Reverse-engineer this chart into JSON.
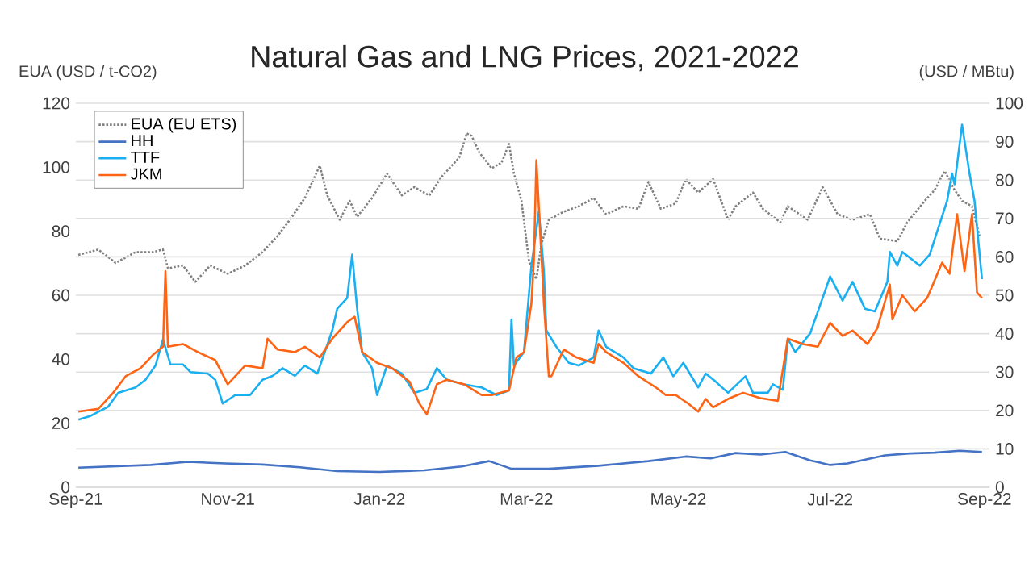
{
  "chart_data": {
    "type": "line",
    "title": "Natural Gas and LNG Prices, 2021-2022",
    "ylabel": "EUA (USD / t-CO2)",
    "y2label": "(USD / MBtu)",
    "xlim": [
      "2021-09-01",
      "2022-09-03"
    ],
    "xticks": [
      {
        "value": "2021-09-01",
        "label": "Sep-21"
      },
      {
        "value": "2021-11-01",
        "label": "Nov-21"
      },
      {
        "value": "2022-01-01",
        "label": "Jan-22"
      },
      {
        "value": "2022-03-01",
        "label": "Mar-22"
      },
      {
        "value": "2022-05-01",
        "label": "May-22"
      },
      {
        "value": "2022-07-01",
        "label": "Jul-22"
      },
      {
        "value": "2022-09-01",
        "label": "Sep-22"
      }
    ],
    "ylim": [
      0,
      120
    ],
    "yticks": [
      0,
      20,
      40,
      60,
      80,
      100,
      120
    ],
    "y2lim": [
      0,
      100
    ],
    "y2ticks": [
      0,
      10,
      20,
      30,
      40,
      50,
      60,
      70,
      80,
      90,
      100
    ],
    "grid": "y",
    "legend": "top left",
    "marker": "none",
    "series": [
      {
        "name": "EUA (EU ETS)",
        "color": "#808080",
        "line_style": "dotted",
        "x": [
          "2021-09-02",
          "2021-09-10",
          "2021-09-17",
          "2021-09-25",
          "2021-10-02",
          "2021-10-06",
          "2021-10-08",
          "2021-10-14",
          "2021-10-19",
          "2021-10-25",
          "2021-11-01",
          "2021-11-08",
          "2021-11-15",
          "2021-11-21",
          "2021-11-26",
          "2021-12-02",
          "2021-12-08",
          "2021-12-11",
          "2021-12-16",
          "2021-12-20",
          "2021-12-23",
          "2021-12-29",
          "2022-01-04",
          "2022-01-10",
          "2022-01-15",
          "2022-01-21",
          "2022-01-26",
          "2022-02-02",
          "2022-02-05",
          "2022-02-07",
          "2022-02-10",
          "2022-02-15",
          "2022-02-19",
          "2022-02-22",
          "2022-02-24",
          "2022-02-27",
          "2022-03-02",
          "2022-03-05",
          "2022-03-07",
          "2022-03-10",
          "2022-03-16",
          "2022-03-22",
          "2022-03-28",
          "2022-04-02",
          "2022-04-09",
          "2022-04-15",
          "2022-04-19",
          "2022-04-24",
          "2022-04-30",
          "2022-05-04",
          "2022-05-09",
          "2022-05-15",
          "2022-05-21",
          "2022-05-24",
          "2022-05-31",
          "2022-06-04",
          "2022-06-11",
          "2022-06-14",
          "2022-06-22",
          "2022-06-28",
          "2022-07-04",
          "2022-07-10",
          "2022-07-17",
          "2022-07-21",
          "2022-07-28",
          "2022-08-01",
          "2022-08-08",
          "2022-08-12",
          "2022-08-16",
          "2022-08-20",
          "2022-08-23",
          "2022-08-27",
          "2022-08-30"
        ],
        "values": [
          72.6,
          74.3,
          70.1,
          73.5,
          73.5,
          74.3,
          68.4,
          69.3,
          64.2,
          69.3,
          66.7,
          69.3,
          73.5,
          78.5,
          83.6,
          90.4,
          100.5,
          91.2,
          83.6,
          89.5,
          84.5,
          90.4,
          98,
          91.2,
          93.8,
          91.2,
          97.1,
          103,
          110.6,
          109.8,
          104.7,
          99.7,
          101.4,
          107.3,
          98,
          89.5,
          70.9,
          65,
          76,
          83.6,
          86.1,
          87.8,
          90.4,
          85.3,
          87.8,
          87,
          95.4,
          87,
          88.7,
          96.3,
          92.1,
          96.3,
          83.6,
          87.8,
          92.1,
          87,
          82.8,
          87.8,
          83.6,
          93.8,
          85.3,
          83.6,
          85.3,
          77.7,
          76.9,
          82.8,
          89.5,
          92.9,
          98.8,
          92.9,
          89.5,
          87.8,
          78.5
        ]
      },
      {
        "name": "HH",
        "color": "#4472c4",
        "axis": "y2",
        "x": [
          "2021-09-02",
          "2021-10-01",
          "2021-10-16",
          "2021-10-31",
          "2021-11-15",
          "2021-11-30",
          "2021-12-15",
          "2022-01-01",
          "2022-01-19",
          "2022-02-03",
          "2022-02-14",
          "2022-02-23",
          "2022-03-10",
          "2022-03-30",
          "2022-04-19",
          "2022-05-04",
          "2022-05-14",
          "2022-05-24",
          "2022-06-03",
          "2022-06-13",
          "2022-06-23",
          "2022-07-01",
          "2022-07-08",
          "2022-07-23",
          "2022-08-02",
          "2022-08-12",
          "2022-08-22",
          "2022-08-31"
        ],
        "values": [
          5.1,
          5.8,
          6.6,
          6.2,
          5.9,
          5.2,
          4.2,
          4.0,
          4.4,
          5.4,
          6.8,
          4.8,
          4.8,
          5.6,
          6.8,
          8.0,
          7.5,
          8.9,
          8.5,
          9.2,
          7.0,
          5.8,
          6.2,
          8.3,
          8.8,
          9.0,
          9.5,
          9.2
        ]
      },
      {
        "name": "TTF",
        "color": "#1aaff0",
        "axis": "y2",
        "x": [
          "2021-09-02",
          "2021-09-07",
          "2021-09-14",
          "2021-09-18",
          "2021-09-25",
          "2021-09-29",
          "2021-10-03",
          "2021-10-06",
          "2021-10-09",
          "2021-10-14",
          "2021-10-17",
          "2021-10-24",
          "2021-10-27",
          "2021-10-30",
          "2021-11-04",
          "2021-11-10",
          "2021-11-15",
          "2021-11-19",
          "2021-11-23",
          "2021-11-28",
          "2021-12-02",
          "2021-12-07",
          "2021-12-13",
          "2021-12-15",
          "2021-12-19",
          "2021-12-21",
          "2021-12-23",
          "2021-12-25",
          "2021-12-29",
          "2021-12-31",
          "2022-01-04",
          "2022-01-10",
          "2022-01-15",
          "2022-01-20",
          "2022-01-24",
          "2022-01-28",
          "2022-02-04",
          "2022-02-11",
          "2022-02-17",
          "2022-02-22",
          "2022-02-23",
          "2022-02-24",
          "2022-02-28",
          "2022-03-03",
          "2022-03-06",
          "2022-03-08",
          "2022-03-09",
          "2022-03-13",
          "2022-03-18",
          "2022-03-22",
          "2022-03-28",
          "2022-03-30",
          "2022-04-02",
          "2022-04-09",
          "2022-04-13",
          "2022-04-20",
          "2022-04-25",
          "2022-04-29",
          "2022-05-03",
          "2022-05-09",
          "2022-05-12",
          "2022-05-16",
          "2022-05-21",
          "2022-05-28",
          "2022-05-31",
          "2022-06-06",
          "2022-06-08",
          "2022-06-12",
          "2022-06-14",
          "2022-06-17",
          "2022-06-23",
          "2022-06-28",
          "2022-07-01",
          "2022-07-06",
          "2022-07-10",
          "2022-07-15",
          "2022-07-19",
          "2022-07-24",
          "2022-07-25",
          "2022-07-28",
          "2022-07-30",
          "2022-08-06",
          "2022-08-10",
          "2022-08-17",
          "2022-08-19",
          "2022-08-20",
          "2022-08-23",
          "2022-08-26",
          "2022-08-28",
          "2022-08-31"
        ],
        "values": [
          17.6,
          18.6,
          21,
          24.6,
          26,
          28,
          31.7,
          38.5,
          32,
          32,
          30,
          29.6,
          28,
          21.8,
          24,
          24,
          28,
          29,
          31,
          29,
          31.7,
          29.6,
          40.8,
          46.5,
          49.3,
          60.6,
          46.5,
          35.2,
          31,
          24,
          31.7,
          29.6,
          24.6,
          25.6,
          31,
          28,
          26.8,
          26,
          24,
          25.2,
          43.7,
          31.7,
          35.2,
          57.7,
          71.8,
          56.3,
          40.8,
          36.6,
          32.4,
          31.7,
          33.8,
          40.8,
          36.6,
          33.8,
          31,
          29.6,
          33.8,
          28.9,
          32.4,
          26,
          29.6,
          27.5,
          24.6,
          28.9,
          24.6,
          24.6,
          26.8,
          25.4,
          38.7,
          35.2,
          40.1,
          49.3,
          54.9,
          48.6,
          53.5,
          46.5,
          45.8,
          53.5,
          61.3,
          57.7,
          61.3,
          57.7,
          60.6,
          74.6,
          81.7,
          78.9,
          94.4,
          81.7,
          74.6,
          54.2
        ]
      },
      {
        "name": "JKM",
        "color": "#ff6414",
        "axis": "y2",
        "x": [
          "2021-09-02",
          "2021-09-10",
          "2021-09-16",
          "2021-09-21",
          "2021-09-27",
          "2021-10-02",
          "2021-10-06",
          "2021-10-07",
          "2021-10-08",
          "2021-10-14",
          "2021-10-20",
          "2021-10-27",
          "2021-11-01",
          "2021-11-08",
          "2021-11-15",
          "2021-11-17",
          "2021-11-21",
          "2021-11-28",
          "2021-12-02",
          "2021-12-08",
          "2021-12-13",
          "2021-12-19",
          "2021-12-22",
          "2021-12-25",
          "2021-12-31",
          "2022-01-06",
          "2022-01-13",
          "2022-01-17",
          "2022-01-20",
          "2022-01-24",
          "2022-01-28",
          "2022-02-04",
          "2022-02-11",
          "2022-02-15",
          "2022-02-22",
          "2022-02-25",
          "2022-02-28",
          "2022-03-03",
          "2022-03-04",
          "2022-03-05",
          "2022-03-08",
          "2022-03-10",
          "2022-03-11",
          "2022-03-16",
          "2022-03-21",
          "2022-03-28",
          "2022-03-30",
          "2022-04-02",
          "2022-04-09",
          "2022-04-15",
          "2022-04-22",
          "2022-04-26",
          "2022-04-30",
          "2022-05-05",
          "2022-05-09",
          "2022-05-12",
          "2022-05-15",
          "2022-05-21",
          "2022-05-27",
          "2022-06-03",
          "2022-06-10",
          "2022-06-14",
          "2022-06-20",
          "2022-06-26",
          "2022-07-01",
          "2022-07-06",
          "2022-07-10",
          "2022-07-16",
          "2022-07-20",
          "2022-07-25",
          "2022-07-26",
          "2022-07-30",
          "2022-08-04",
          "2022-08-09",
          "2022-08-15",
          "2022-08-18",
          "2022-08-21",
          "2022-08-24",
          "2022-08-27",
          "2022-08-29",
          "2022-08-31"
        ],
        "values": [
          19.7,
          20.4,
          24.6,
          28.9,
          31,
          34.5,
          36.6,
          56.3,
          36.6,
          37.3,
          35.2,
          33.1,
          26.8,
          31.7,
          31,
          38.7,
          35.9,
          35.2,
          36.6,
          33.8,
          38.7,
          43,
          44.4,
          35.2,
          32.4,
          31,
          27.5,
          21.8,
          19,
          26.8,
          28,
          26.8,
          24,
          24,
          25.2,
          33.8,
          35.2,
          47.9,
          59.2,
          85.2,
          47.9,
          28.9,
          28.9,
          35.9,
          33.8,
          32.4,
          37.3,
          35.2,
          32.4,
          28.9,
          26,
          24,
          24,
          21.8,
          19.7,
          23,
          20.8,
          23,
          24.6,
          23.2,
          22.5,
          38.7,
          37.3,
          36.6,
          42.8,
          39.4,
          40.8,
          37.3,
          41.5,
          52.8,
          43.7,
          50,
          45.8,
          49.3,
          58.5,
          55.6,
          71.1,
          56.3,
          71.1,
          50.7,
          49.3
        ]
      }
    ]
  }
}
